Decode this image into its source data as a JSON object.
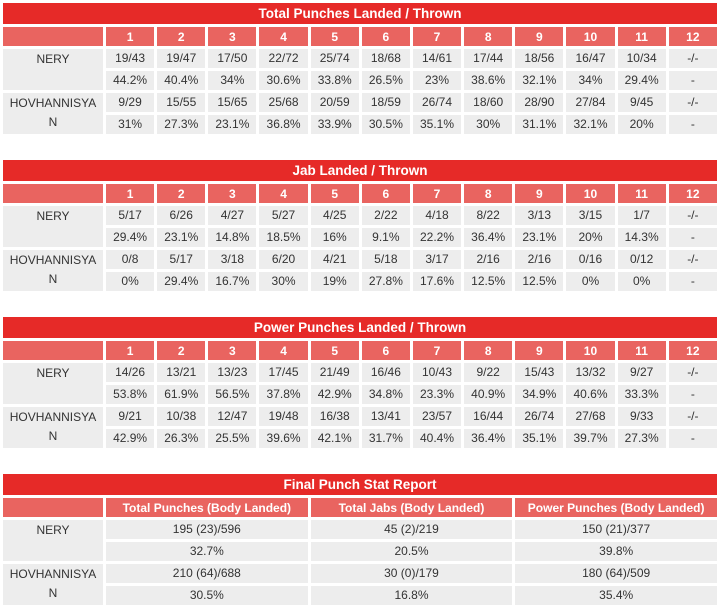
{
  "report": {
    "fighters": [
      "NERY",
      "HOVHANNISYAN"
    ]
  },
  "colors": {
    "title_bar_red": "#e62a28",
    "header_salmon": "#e96460",
    "cell_gray": "#ededed",
    "cell_text": "#333333",
    "header_text": "#ffffff",
    "page_background": "#ffffff"
  },
  "chart_data": [
    {
      "type": "table",
      "title": "Total Punches Landed / Thrown",
      "columns": [
        "1",
        "2",
        "3",
        "4",
        "5",
        "6",
        "7",
        "8",
        "9",
        "10",
        "11",
        "12"
      ],
      "rows": [
        {
          "name": "NERY",
          "values": [
            "19/43",
            "19/47",
            "17/50",
            "22/72",
            "25/74",
            "18/68",
            "14/61",
            "17/44",
            "18/56",
            "16/47",
            "10/34",
            "-/-"
          ],
          "pcts": [
            "44.2%",
            "40.4%",
            "34%",
            "30.6%",
            "33.8%",
            "26.5%",
            "23%",
            "38.6%",
            "32.1%",
            "34%",
            "29.4%",
            "-"
          ]
        },
        {
          "name": "HOVHANNISYAN",
          "values": [
            "9/29",
            "15/55",
            "15/65",
            "25/68",
            "20/59",
            "18/59",
            "26/74",
            "18/60",
            "28/90",
            "27/84",
            "9/45",
            "-/-"
          ],
          "pcts": [
            "31%",
            "27.3%",
            "23.1%",
            "36.8%",
            "33.9%",
            "30.5%",
            "35.1%",
            "30%",
            "31.1%",
            "32.1%",
            "20%",
            "-"
          ]
        }
      ]
    },
    {
      "type": "table",
      "title": "Jab Landed / Thrown",
      "columns": [
        "1",
        "2",
        "3",
        "4",
        "5",
        "6",
        "7",
        "8",
        "9",
        "10",
        "11",
        "12"
      ],
      "rows": [
        {
          "name": "NERY",
          "values": [
            "5/17",
            "6/26",
            "4/27",
            "5/27",
            "4/25",
            "2/22",
            "4/18",
            "8/22",
            "3/13",
            "3/15",
            "1/7",
            "-/-"
          ],
          "pcts": [
            "29.4%",
            "23.1%",
            "14.8%",
            "18.5%",
            "16%",
            "9.1%",
            "22.2%",
            "36.4%",
            "23.1%",
            "20%",
            "14.3%",
            "-"
          ]
        },
        {
          "name": "HOVHANNISYAN",
          "values": [
            "0/8",
            "5/17",
            "3/18",
            "6/20",
            "4/21",
            "5/18",
            "3/17",
            "2/16",
            "2/16",
            "0/16",
            "0/12",
            "-/-"
          ],
          "pcts": [
            "0%",
            "29.4%",
            "16.7%",
            "30%",
            "19%",
            "27.8%",
            "17.6%",
            "12.5%",
            "12.5%",
            "0%",
            "0%",
            "-"
          ]
        }
      ]
    },
    {
      "type": "table",
      "title": "Power Punches Landed / Thrown",
      "columns": [
        "1",
        "2",
        "3",
        "4",
        "5",
        "6",
        "7",
        "8",
        "9",
        "10",
        "11",
        "12"
      ],
      "rows": [
        {
          "name": "NERY",
          "values": [
            "14/26",
            "13/21",
            "13/23",
            "17/45",
            "21/49",
            "16/46",
            "10/43",
            "9/22",
            "15/43",
            "13/32",
            "9/27",
            "-/-"
          ],
          "pcts": [
            "53.8%",
            "61.9%",
            "56.5%",
            "37.8%",
            "42.9%",
            "34.8%",
            "23.3%",
            "40.9%",
            "34.9%",
            "40.6%",
            "33.3%",
            "-"
          ]
        },
        {
          "name": "HOVHANNISYAN",
          "values": [
            "9/21",
            "10/38",
            "12/47",
            "19/48",
            "16/38",
            "13/41",
            "23/57",
            "16/44",
            "26/74",
            "27/68",
            "9/33",
            "-/-"
          ],
          "pcts": [
            "42.9%",
            "26.3%",
            "25.5%",
            "39.6%",
            "42.1%",
            "31.7%",
            "40.4%",
            "36.4%",
            "35.1%",
            "39.7%",
            "27.3%",
            "-"
          ]
        }
      ]
    },
    {
      "type": "table",
      "title": "Final Punch Stat Report",
      "columns": [
        "Total Punches (Body Landed)",
        "Total Jabs (Body Landed)",
        "Power Punches (Body Landed)"
      ],
      "rows": [
        {
          "name": "NERY",
          "values": [
            "195 (23)/596",
            "45 (2)/219",
            "150 (21)/377"
          ],
          "pcts": [
            "32.7%",
            "20.5%",
            "39.8%"
          ]
        },
        {
          "name": "HOVHANNISYAN",
          "values": [
            "210 (64)/688",
            "30 (0)/179",
            "180 (64)/509"
          ],
          "pcts": [
            "30.5%",
            "16.8%",
            "35.4%"
          ]
        }
      ]
    }
  ]
}
